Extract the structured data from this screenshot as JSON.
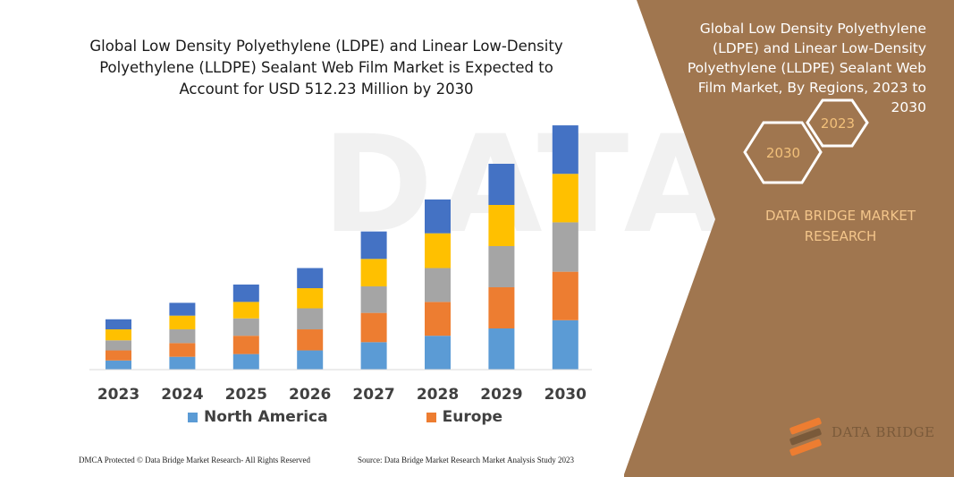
{
  "chart_data": {
    "type": "bar",
    "stacked": true,
    "title": "Global Low Density Polyethylene (LDPE) and Linear Low-Density Polyethylene (LLDPE) Sealant Web Film Market is Expected to Account for USD 512.23 Million by 2030",
    "categories": [
      "2023",
      "2024",
      "2025",
      "2026",
      "2027",
      "2028",
      "2029",
      "2030"
    ],
    "series": [
      {
        "name": "North America",
        "color": "#5b9bd5",
        "values": [
          10,
          14,
          17,
          21,
          30,
          37,
          45,
          54
        ]
      },
      {
        "name": "Europe",
        "color": "#ed7d31",
        "values": [
          11,
          15,
          20,
          23,
          32,
          37,
          45,
          53
        ]
      },
      {
        "name": "",
        "color": "#a5a5a5",
        "values": [
          11,
          15,
          19,
          23,
          29,
          37,
          45,
          54
        ]
      },
      {
        "name": "",
        "color": "#ffc000",
        "values": [
          12,
          15,
          18,
          22,
          30,
          38,
          45,
          53
        ]
      },
      {
        "name": "",
        "color": "#4472c4",
        "values": [
          11,
          14,
          19,
          22,
          30,
          37,
          45,
          53
        ]
      }
    ],
    "xlabel": "",
    "ylabel": "",
    "ylim": [
      0,
      270
    ],
    "grid": false,
    "legend_position": "bottom"
  },
  "panel": {
    "title": "Global Low Density Polyethylene (LDPE)  and Linear Low-Density Polyethylene (LLDPE) Sealant Web Film Market, By Regions, 2023 to 2030",
    "hex_labels": [
      "2023",
      "2030"
    ],
    "brand": "DATA BRIDGE MARKET RESEARCH",
    "background_color": "#a0764f"
  },
  "watermark": "DATA BRI",
  "logo_text": "DATA BRIDGE",
  "footer": {
    "left": "DMCA Protected © Data Bridge Market Research- All Rights Reserved",
    "right": "Source: Data Bridge Market Research Market Analysis Study 2023"
  }
}
